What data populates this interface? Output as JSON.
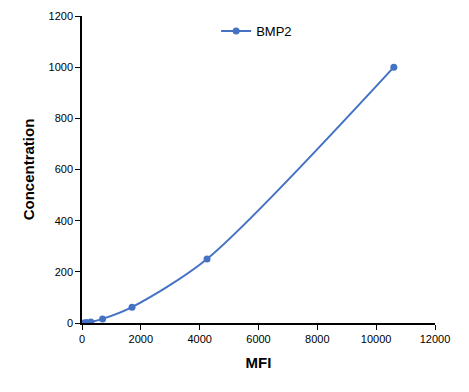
{
  "chart_data": {
    "type": "line",
    "x_label": "MFI",
    "y_label": "Concentration",
    "series": [
      {
        "name": "BMP2",
        "color": "#4472c4",
        "marker": "circle",
        "line_style": "solid",
        "x": [
          60,
          150,
          300,
          700,
          1700,
          4250,
          10600
        ],
        "values": [
          0,
          2,
          4,
          16,
          62,
          250,
          1000
        ]
      }
    ],
    "xlim": [
      0,
      12000
    ],
    "xticks": [
      0,
      2000,
      4000,
      6000,
      8000,
      10000,
      12000
    ],
    "ylim": [
      0,
      1200
    ],
    "yticks": [
      0,
      200,
      400,
      600,
      800,
      1000,
      1200
    ],
    "grid": false,
    "legend": "top"
  }
}
